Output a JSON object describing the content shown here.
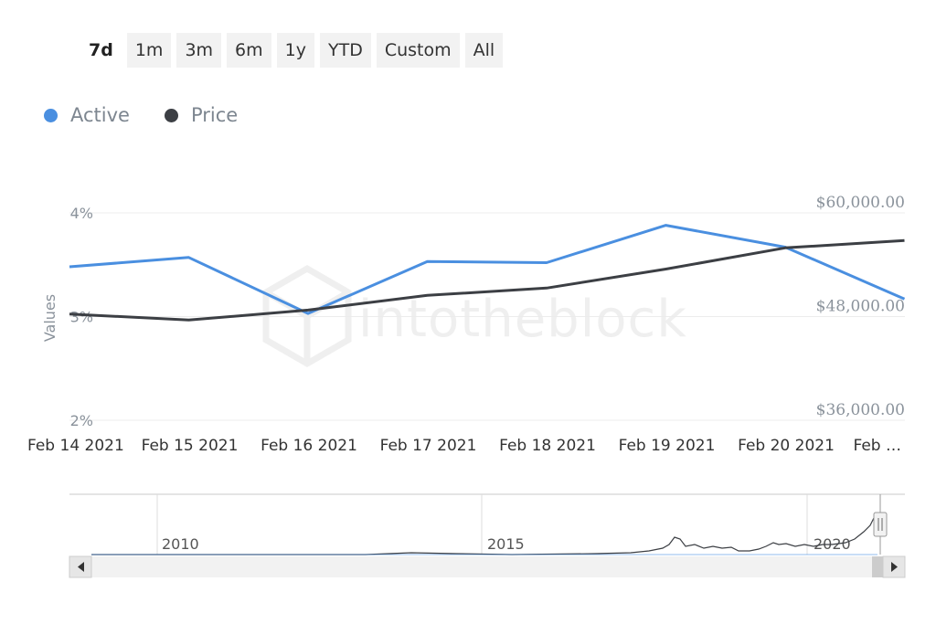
{
  "range_selector": {
    "buttons": [
      "7d",
      "1m",
      "3m",
      "6m",
      "1y",
      "YTD",
      "Custom",
      "All"
    ],
    "selected": "7d"
  },
  "colors": {
    "active": "#4a8fe0",
    "price": "#3c3f44",
    "grid": "#ececec"
  },
  "watermark": "intotheblock",
  "chart_data": {
    "type": "line",
    "categories": [
      "Feb 14 2021",
      "Feb 15 2021",
      "Feb 16 2021",
      "Feb 17 2021",
      "Feb 18 2021",
      "Feb 19 2021",
      "Feb 20 2021",
      "Feb …"
    ],
    "series": [
      {
        "name": "Active",
        "axis": "left",
        "values": [
          3.48,
          3.57,
          3.03,
          3.53,
          3.52,
          3.88,
          3.67,
          3.17
        ]
      },
      {
        "name": "Price",
        "axis": "right",
        "values": [
          48300,
          47600,
          48750,
          50450,
          51300,
          53500,
          55950,
          56800
        ]
      }
    ],
    "ylabel": "Values",
    "y_left": {
      "ticks": [
        "2%",
        "3%",
        "4%"
      ],
      "values": [
        2,
        3,
        4
      ],
      "range": [
        2,
        4
      ]
    },
    "y_right": {
      "ticks": [
        "$36,000.00",
        "$48,000.00",
        "$60,000.00"
      ],
      "values": [
        36000,
        48000,
        60000
      ],
      "range": [
        36000,
        60000
      ]
    },
    "grid": true,
    "legend_position": "top-left"
  },
  "navigator": {
    "year_labels": [
      "2010",
      "2015",
      "2020"
    ]
  }
}
